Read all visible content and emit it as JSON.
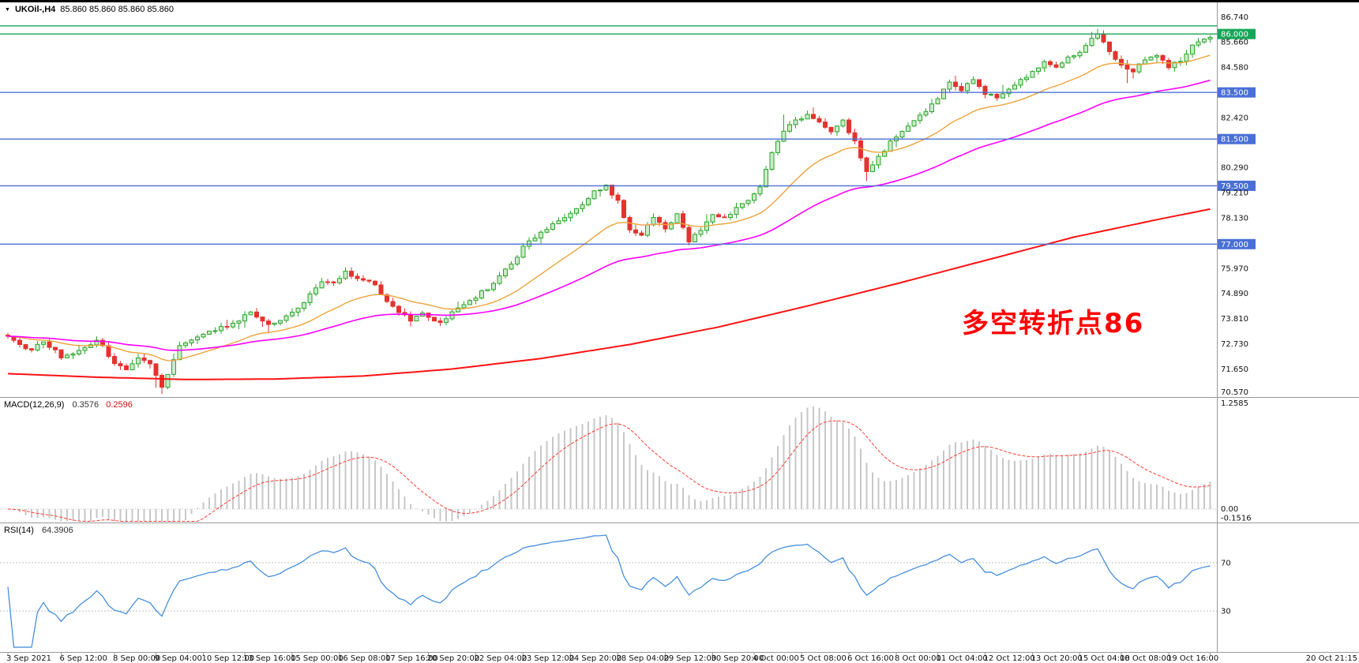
{
  "window": {
    "top_edge_color": "#000000"
  },
  "header": {
    "marker": "▼",
    "symbol_period": "UKOil-,H4",
    "ohlc_text": "85.860 85.860 85.860 85.860"
  },
  "annotation": {
    "text": "多空转折点86",
    "color": "#ff0000"
  },
  "colors": {
    "bull": "#2aa52a",
    "bull_fill": "#c9ecc9",
    "bear": "#e3332e",
    "ma_fast": "#eda33b",
    "ma_mid": "#ff00ff",
    "ma_trend": "#ff1212",
    "hline_blue": "#4a6fd6",
    "hline_green": "#17a657",
    "macd_hist": "#c7c7c7",
    "macd_signal": "#ff3b30",
    "rsi_line": "#3a87d9",
    "axis_text": "#111111",
    "separator": "#9a9a9a",
    "level_dotted": "#c0c0c0"
  },
  "chart_data": {
    "type": "candlestick",
    "symbol": "UKOil",
    "timeframe": "H4",
    "bars": 204,
    "last_price": 85.86,
    "price_axis": {
      "view_max": 86.85,
      "view_min": 70.45,
      "ticks": [
        [
          "86.740",
          86.74
        ],
        [
          "85.660",
          85.66
        ],
        [
          "84.580",
          84.58
        ],
        [
          "82.420",
          82.42
        ],
        [
          "80.290",
          80.29
        ],
        [
          "79.210",
          79.21
        ],
        [
          "78.130",
          78.13
        ],
        [
          "75.970",
          75.97
        ],
        [
          "74.890",
          74.89
        ],
        [
          "73.810",
          73.81
        ],
        [
          "72.730",
          72.73
        ],
        [
          "71.650",
          71.65
        ],
        [
          "70.570",
          70.57
        ]
      ]
    },
    "hlines": [
      {
        "price": 86.35,
        "color": "#17a657",
        "label": null
      },
      {
        "price": 86.0,
        "color": "#17a657",
        "label": "86.000"
      },
      {
        "price": 83.5,
        "color": "#4a6fd6",
        "label": "83.500"
      },
      {
        "price": 81.5,
        "color": "#4a6fd6",
        "label": "81.500"
      },
      {
        "price": 79.5,
        "color": "#4a6fd6",
        "label": "79.500"
      },
      {
        "price": 77.0,
        "color": "#4a6fd6",
        "label": "77.000"
      }
    ],
    "time_labels": [
      [
        "3 Sep 2021",
        0
      ],
      [
        "6 Sep 12:00",
        9
      ],
      [
        "8 Sep 00:00",
        18
      ],
      [
        "9 Sep 04:00",
        25
      ],
      [
        "10 Sep 12:00",
        33
      ],
      [
        "13 Sep 16:00",
        40
      ],
      [
        "15 Sep 00:00",
        48
      ],
      [
        "16 Sep 08:00",
        56
      ],
      [
        "17 Sep 16:00",
        64
      ],
      [
        "20 Sep 20:00",
        71
      ],
      [
        "22 Sep 04:00",
        79
      ],
      [
        "23 Sep 12:00",
        87
      ],
      [
        "24 Sep 20:00",
        95
      ],
      [
        "28 Sep 04:00",
        103
      ],
      [
        "29 Sep 12:00",
        111
      ],
      [
        "30 Sep 20:00",
        119
      ],
      [
        "4 Oct 00:00",
        126
      ],
      [
        "5 Oct 08:00",
        134
      ],
      [
        "6 Oct 16:00",
        142
      ],
      [
        "8 Oct 00:00",
        150
      ],
      [
        "11 Oct 04:00",
        157
      ],
      [
        "12 Oct 12:00",
        165
      ],
      [
        "13 Oct 20:00",
        173
      ],
      [
        "15 Oct 04:00",
        181
      ],
      [
        "18 Oct 08:00",
        188
      ],
      [
        "19 Oct 16:00",
        196
      ],
      [
        "20 Oct 21:15",
        203
      ]
    ],
    "close_waypoints": [
      [
        0,
        73.05
      ],
      [
        2,
        72.7
      ],
      [
        4,
        72.45
      ],
      [
        6,
        72.85
      ],
      [
        9,
        72.2
      ],
      [
        12,
        72.45
      ],
      [
        15,
        72.9
      ],
      [
        18,
        71.95
      ],
      [
        20,
        71.6
      ],
      [
        22,
        72.1
      ],
      [
        24,
        71.85
      ],
      [
        26,
        70.95
      ],
      [
        27,
        71.4
      ],
      [
        29,
        72.6
      ],
      [
        32,
        73.05
      ],
      [
        35,
        73.35
      ],
      [
        38,
        73.6
      ],
      [
        41,
        74.05
      ],
      [
        44,
        73.55
      ],
      [
        47,
        73.85
      ],
      [
        50,
        74.55
      ],
      [
        53,
        75.45
      ],
      [
        55,
        75.35
      ],
      [
        57,
        75.85
      ],
      [
        59,
        75.55
      ],
      [
        62,
        75.25
      ],
      [
        64,
        74.55
      ],
      [
        66,
        74.15
      ],
      [
        68,
        73.75
      ],
      [
        70,
        74.0
      ],
      [
        73,
        73.6
      ],
      [
        76,
        74.3
      ],
      [
        79,
        74.75
      ],
      [
        82,
        75.3
      ],
      [
        85,
        76.2
      ],
      [
        88,
        77.15
      ],
      [
        91,
        77.6
      ],
      [
        93,
        78.0
      ],
      [
        96,
        78.45
      ],
      [
        99,
        79.25
      ],
      [
        101,
        79.5
      ],
      [
        103,
        78.85
      ],
      [
        105,
        77.55
      ],
      [
        107,
        77.4
      ],
      [
        109,
        78.1
      ],
      [
        111,
        77.7
      ],
      [
        113,
        78.25
      ],
      [
        115,
        77.15
      ],
      [
        117,
        77.6
      ],
      [
        119,
        78.25
      ],
      [
        121,
        78.1
      ],
      [
        123,
        78.6
      ],
      [
        125,
        78.9
      ],
      [
        127,
        79.5
      ],
      [
        129,
        80.9
      ],
      [
        131,
        81.85
      ],
      [
        133,
        82.25
      ],
      [
        135,
        82.55
      ],
      [
        137,
        82.15
      ],
      [
        139,
        81.8
      ],
      [
        141,
        82.35
      ],
      [
        143,
        81.35
      ],
      [
        145,
        80.05
      ],
      [
        147,
        80.7
      ],
      [
        149,
        81.4
      ],
      [
        151,
        81.9
      ],
      [
        153,
        82.35
      ],
      [
        155,
        82.6
      ],
      [
        157,
        83.3
      ],
      [
        159,
        84.0
      ],
      [
        161,
        83.65
      ],
      [
        163,
        84.05
      ],
      [
        165,
        83.4
      ],
      [
        167,
        83.3
      ],
      [
        169,
        83.6
      ],
      [
        171,
        84.0
      ],
      [
        173,
        84.35
      ],
      [
        175,
        84.75
      ],
      [
        177,
        84.55
      ],
      [
        179,
        85.0
      ],
      [
        181,
        85.25
      ],
      [
        183,
        85.85
      ],
      [
        184,
        85.95
      ],
      [
        186,
        85.25
      ],
      [
        188,
        84.6
      ],
      [
        190,
        84.4
      ],
      [
        192,
        84.9
      ],
      [
        194,
        85.15
      ],
      [
        196,
        84.55
      ],
      [
        198,
        84.9
      ],
      [
        200,
        85.45
      ],
      [
        202,
        85.75
      ],
      [
        203,
        85.86
      ]
    ],
    "red_ma_waypoints": [
      [
        0,
        71.45
      ],
      [
        15,
        71.3
      ],
      [
        30,
        71.2
      ],
      [
        45,
        71.22
      ],
      [
        60,
        71.35
      ],
      [
        75,
        71.65
      ],
      [
        90,
        72.1
      ],
      [
        105,
        72.7
      ],
      [
        120,
        73.45
      ],
      [
        135,
        74.35
      ],
      [
        150,
        75.3
      ],
      [
        165,
        76.3
      ],
      [
        180,
        77.3
      ],
      [
        195,
        78.1
      ],
      [
        203,
        78.5
      ]
    ],
    "wick_events": [
      [
        25,
        "low",
        70.85
      ],
      [
        26,
        "low",
        70.58
      ],
      [
        115,
        "low",
        76.95
      ],
      [
        131,
        "high",
        82.55
      ],
      [
        136,
        "high",
        82.85
      ],
      [
        145,
        "low",
        79.7
      ],
      [
        183,
        "high",
        86.1
      ],
      [
        184,
        "high",
        86.22
      ],
      [
        189,
        "low",
        83.9
      ]
    ],
    "moving_averages": {
      "fast_ema": 21,
      "mid_ema": 55
    },
    "macd": {
      "label": "MACD(12,26,9)",
      "main_value": "0.3576",
      "signal_value": "0.2596",
      "axis_max": "1.2585",
      "axis_zero": "0.00",
      "axis_min": "-0.1516",
      "fast": 12,
      "slow": 26,
      "signal": 9
    },
    "rsi": {
      "label": "RSI(14)",
      "value": "64.3906",
      "upper_level": 70,
      "lower_level": 30,
      "period": 14
    }
  }
}
